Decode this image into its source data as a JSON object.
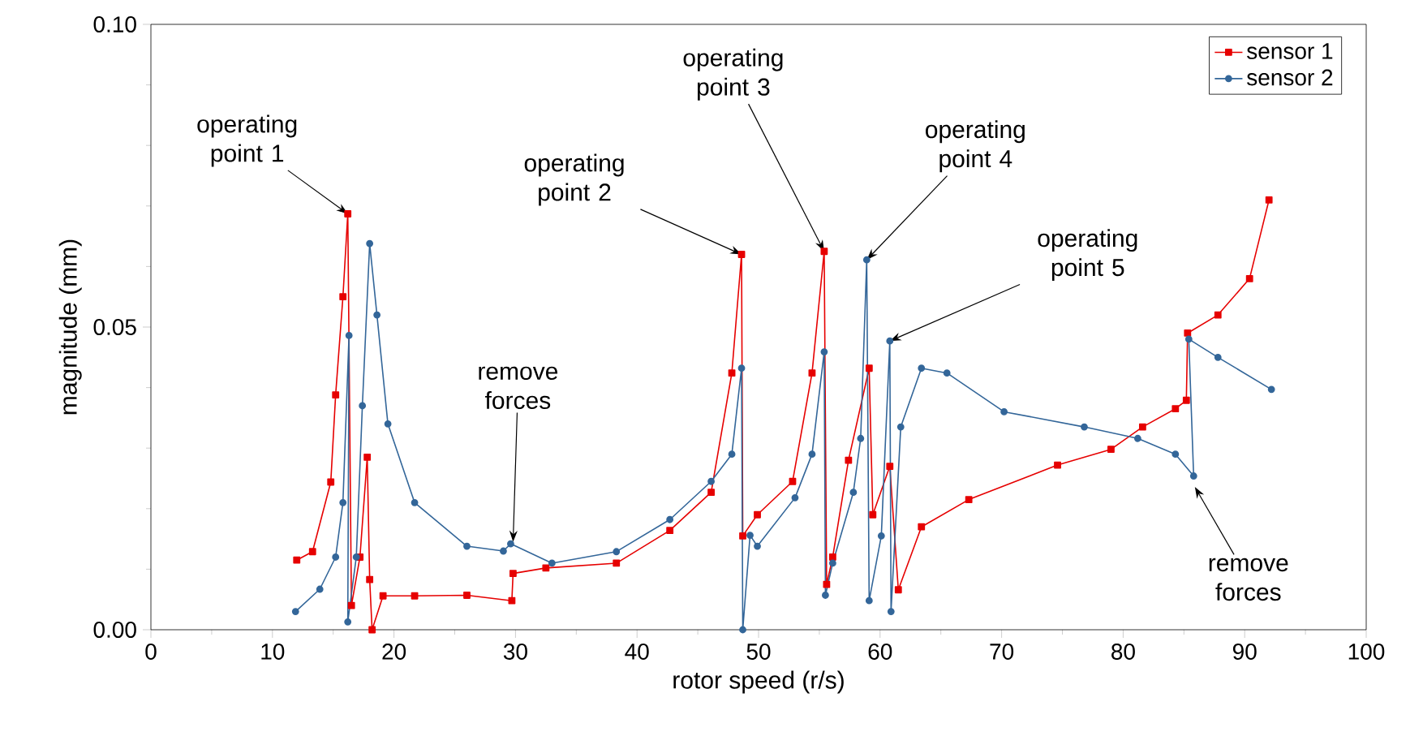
{
  "chart_data": {
    "type": "line",
    "xlabel": "rotor speed (r/s)",
    "ylabel": "magnitude (mm)",
    "xlim": [
      0,
      100
    ],
    "ylim": [
      0,
      0.1
    ],
    "xticks": [
      0,
      10,
      20,
      30,
      40,
      50,
      60,
      70,
      80,
      90,
      100
    ],
    "yticks": [
      {
        "value": 0,
        "label": "0.00"
      },
      {
        "value": 0.05,
        "label": "0.05"
      },
      {
        "value": 0.1,
        "label": "0.10"
      }
    ],
    "legend": "top right",
    "grid": false,
    "series": [
      {
        "name": "sensor 1",
        "color": "#e60000",
        "marker": "square",
        "x": [
          12,
          13.3,
          14.8,
          15.2,
          15.8,
          16.2,
          16.5,
          17.2,
          17.8,
          18,
          18.2,
          19.1,
          21.7,
          26,
          29.7,
          29.8,
          32.5,
          38.3,
          42.7,
          46.1,
          47.8,
          48.6,
          48.7,
          49.9,
          52.8,
          54.4,
          55.4,
          55.6,
          56.1,
          57.4,
          59.1,
          59.4,
          60.8,
          61.5,
          63.4,
          67.3,
          74.6,
          79,
          81.6,
          84.3,
          85.2,
          85.3,
          87.8,
          90.4,
          92
        ],
        "values": [
          0.0115,
          0.0129,
          0.0244,
          0.0388,
          0.055,
          0.0687,
          0.004,
          0.012,
          0.0285,
          0.0083,
          0,
          0.0056,
          0.0056,
          0.0057,
          0.0048,
          0.0093,
          0.0102,
          0.011,
          0.0164,
          0.0227,
          0.0424,
          0.062,
          0.0155,
          0.019,
          0.0245,
          0.0424,
          0.0625,
          0.0075,
          0.012,
          0.028,
          0.0432,
          0.019,
          0.027,
          0.0066,
          0.017,
          0.0215,
          0.0272,
          0.0298,
          0.0335,
          0.0365,
          0.0379,
          0.049,
          0.052,
          0.058,
          0.071
        ]
      },
      {
        "name": "sensor 2",
        "color": "#336699",
        "marker": "circle",
        "x": [
          11.9,
          13.9,
          15.2,
          15.8,
          16.3,
          16.2,
          16.9,
          17.4,
          18,
          18.6,
          19.5,
          21.7,
          26,
          29,
          29.6,
          33,
          38.3,
          42.7,
          46.1,
          47.8,
          48.6,
          48.7,
          49.3,
          49.9,
          53,
          54.4,
          55.4,
          55.5,
          56.1,
          57.8,
          58.4,
          58.9,
          59.1,
          60.1,
          60.8,
          60.9,
          61.7,
          63.4,
          65.5,
          70.2,
          76.8,
          81.2,
          84.3,
          85.8,
          85.4,
          87.8,
          92.2
        ],
        "values": [
          0.003,
          0.0067,
          0.012,
          0.021,
          0.0486,
          0.0013,
          0.012,
          0.037,
          0.0638,
          0.052,
          0.034,
          0.021,
          0.0138,
          0.013,
          0.0142,
          0.011,
          0.0129,
          0.0182,
          0.0245,
          0.029,
          0.0432,
          0,
          0.0156,
          0.0138,
          0.0218,
          0.029,
          0.0459,
          0.0057,
          0.011,
          0.0227,
          0.0316,
          0.0611,
          0.0048,
          0.0155,
          0.0477,
          0.003,
          0.0335,
          0.0432,
          0.0424,
          0.036,
          0.0335,
          0.0316,
          0.029,
          0.0254,
          0.048,
          0.045,
          0.0397
        ]
      }
    ],
    "annotations": [
      {
        "text": "operating point 1",
        "x": 16.2,
        "y": 0.0687
      },
      {
        "text": "operating point 2",
        "x": 48.6,
        "y": 0.062
      },
      {
        "text": "operating point 3",
        "x": 55.4,
        "y": 0.0625
      },
      {
        "text": "operating point 4",
        "x": 58.9,
        "y": 0.0611
      },
      {
        "text": "operating point 5",
        "x": 60.8,
        "y": 0.0477
      },
      {
        "text": "remove forces",
        "x": 29.8,
        "y": 0.0145
      },
      {
        "text": "remove forces",
        "x": 85.9,
        "y": 0.0236
      }
    ]
  }
}
